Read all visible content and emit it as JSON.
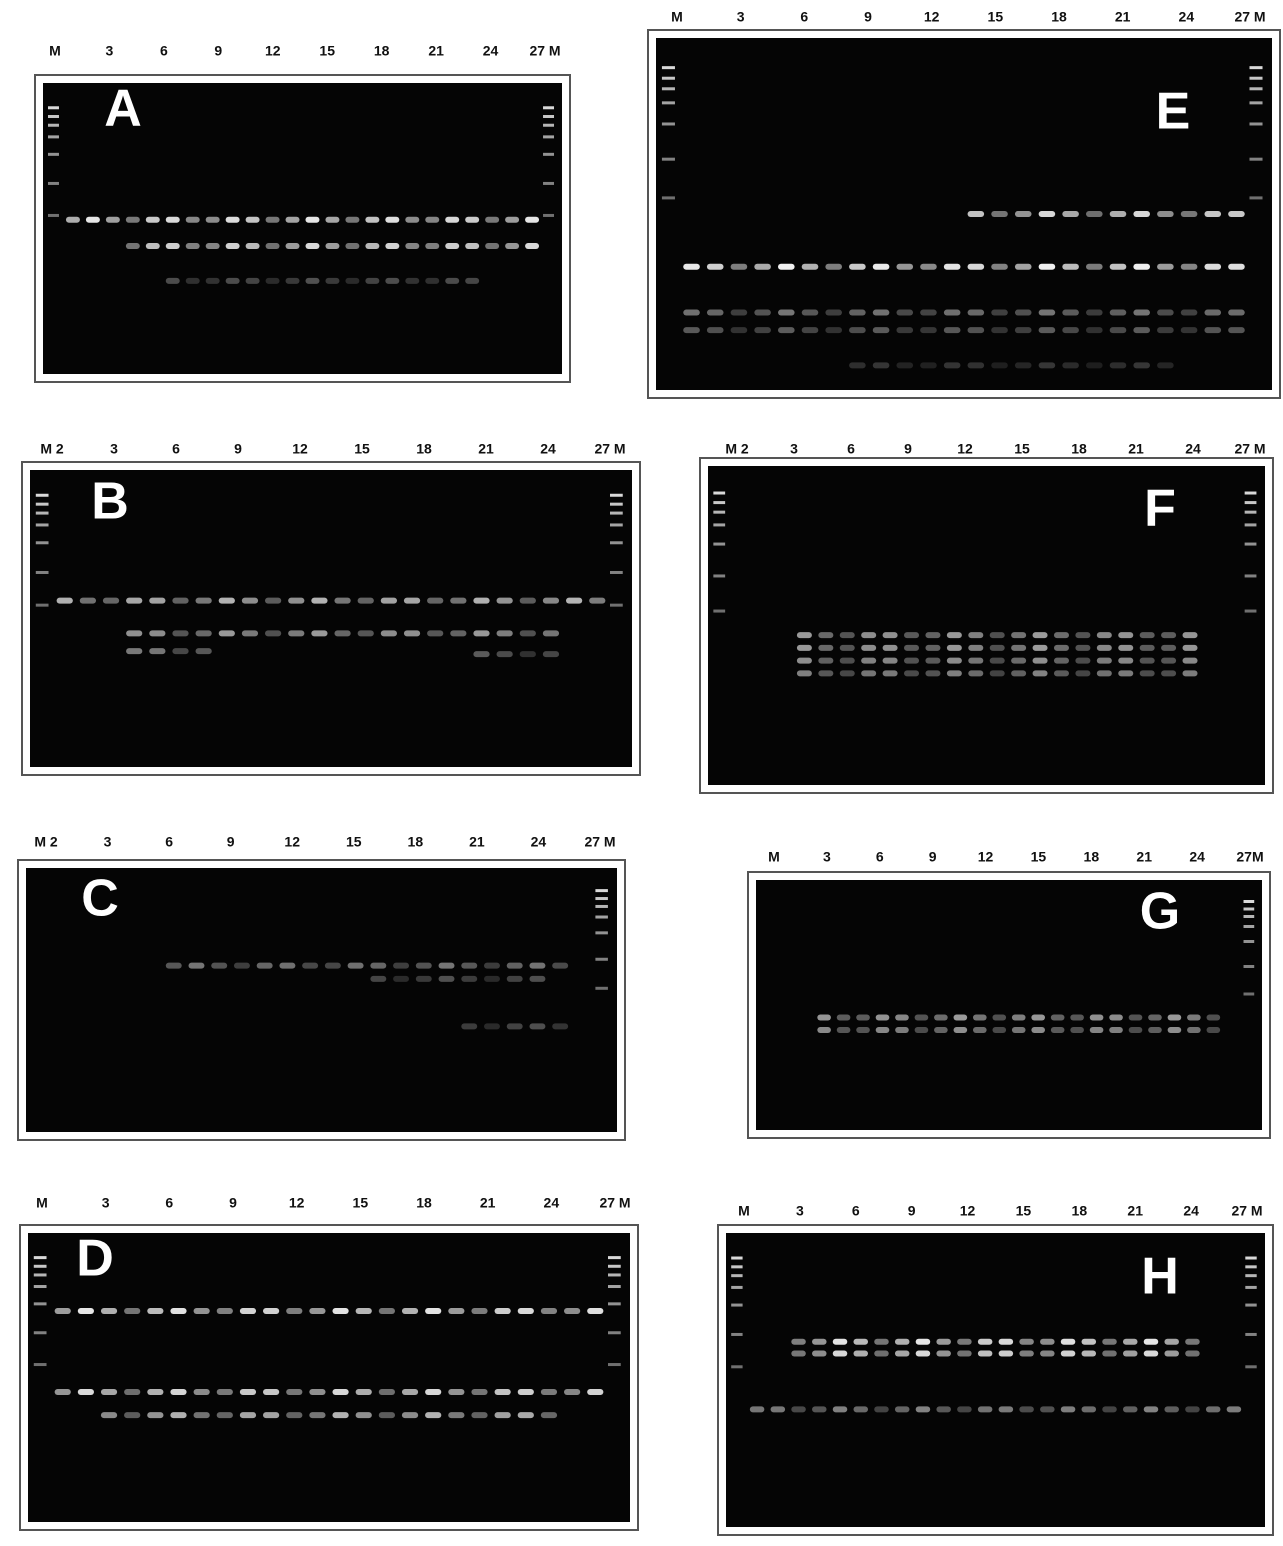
{
  "panels": [
    {
      "letter": "A",
      "lanes": [
        "M",
        "3",
        "6",
        "9",
        "12",
        "15",
        "18",
        "21",
        "24",
        "27 M"
      ]
    },
    {
      "letter": "E",
      "lanes": [
        "M",
        "3",
        "6",
        "9",
        "12",
        "15",
        "18",
        "21",
        "24",
        "27 M"
      ]
    },
    {
      "letter": "B",
      "lanes": [
        "M 2",
        "3",
        "6",
        "9",
        "12",
        "15",
        "18",
        "21",
        "24",
        "27 M"
      ]
    },
    {
      "letter": "F",
      "lanes": [
        "M 2",
        "3",
        "6",
        "9",
        "12",
        "15",
        "18",
        "21",
        "24",
        "27 M"
      ]
    },
    {
      "letter": "C",
      "lanes": [
        "M 2",
        "3",
        "6",
        "9",
        "12",
        "15",
        "18",
        "21",
        "24",
        "27 M"
      ]
    },
    {
      "letter": "G",
      "lanes": [
        "M",
        "3",
        "6",
        "9",
        "12",
        "15",
        "18",
        "21",
        "24",
        "27M"
      ]
    },
    {
      "letter": "D",
      "lanes": [
        "M",
        "3",
        "6",
        "9",
        "12",
        "15",
        "18",
        "21",
        "24",
        "27 M"
      ]
    },
    {
      "letter": "H",
      "lanes": [
        "M",
        "3",
        "6",
        "9",
        "12",
        "15",
        "18",
        "21",
        "24",
        "27 M"
      ]
    }
  ]
}
